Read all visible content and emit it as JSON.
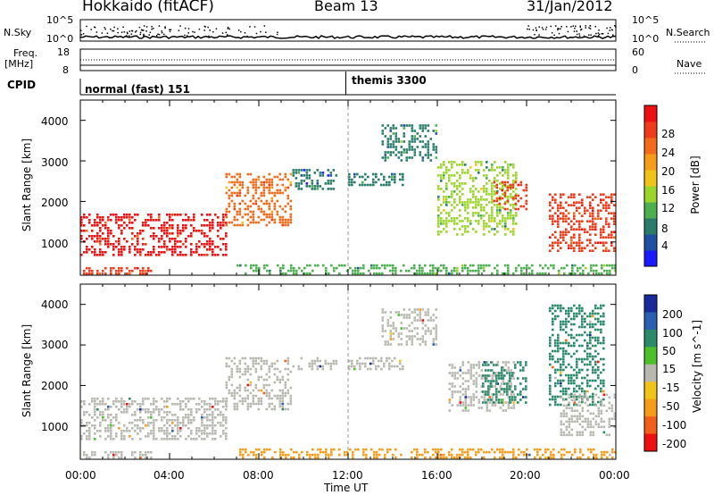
{
  "header": {
    "station": "Hokkaido (fitACF)",
    "beam": "Beam 13",
    "date": "31/Jan/2012"
  },
  "nsky": {
    "label": "N.Sky",
    "tick_top": "10^5",
    "tick_bottom": "10^0",
    "right_tick_top": "10^5",
    "right_tick_bottom": "10^0",
    "right_label": "N.Search"
  },
  "freq": {
    "label_1": "Freq.",
    "label_2": "[MHz]",
    "tick_top": "18",
    "tick_bottom": "8",
    "right_tick_top": "60",
    "right_tick_bottom": "0",
    "right_label": "Nave"
  },
  "cpid": {
    "label": "CPID",
    "mode_1": "normal (fast) 151",
    "mode_2": "themis 3300"
  },
  "power_panel": {
    "ylabel": "Slant Range [km]",
    "yticks": [
      "1000",
      "2000",
      "3000",
      "4000"
    ],
    "colorbar_label": "Power [dB]",
    "colorbar_ticks": [
      "4",
      "8",
      "12",
      "16",
      "20",
      "24",
      "28"
    ],
    "colorbar_colors": [
      "#1a1aff",
      "#1f4fa0",
      "#2a7c6a",
      "#4caf50",
      "#9bd42a",
      "#f0c419",
      "#f59c1a",
      "#f26b1a",
      "#f03b1a",
      "#ee1010"
    ]
  },
  "velocity_panel": {
    "ylabel": "Slant Range [km]",
    "yticks": [
      "1000",
      "2000",
      "3000",
      "4000"
    ],
    "colorbar_label": "Velocity [m s^-1]",
    "colorbar_ticks": [
      "200",
      "100",
      "50",
      "15",
      "-15",
      "-50",
      "-100",
      "-200"
    ],
    "colorbar_colors": [
      "#1a2a9a",
      "#2a60b0",
      "#2a8a6a",
      "#4cc02a",
      "#b8b8b0",
      "#f0c419",
      "#f59c1a",
      "#f0601a",
      "#ee1010"
    ]
  },
  "xaxis": {
    "label": "Time UT",
    "ticks": [
      "00:00",
      "04:00",
      "08:00",
      "12:00",
      "16:00",
      "20:00",
      "00:00"
    ]
  },
  "chart_data": [
    {
      "type": "heatmap",
      "title": "Hokkaido (fitACF)",
      "xlabel": "Time UT",
      "ylabel": "Slant Range [km]",
      "colorbar_label": "Power [dB]",
      "xlim": [
        0,
        24
      ],
      "ylim": [
        180,
        4500
      ],
      "clim": [
        0,
        30
      ],
      "regions": [
        {
          "t": [
            0,
            6.5
          ],
          "r": [
            700,
            1700
          ],
          "value": 28
        },
        {
          "t": [
            0,
            3.2
          ],
          "r": [
            200,
            380
          ],
          "value": 26
        },
        {
          "t": [
            6.5,
            9.5
          ],
          "r": [
            1400,
            2700
          ],
          "value": 22
        },
        {
          "t": [
            9.5,
            11.5
          ],
          "r": [
            2300,
            2800
          ],
          "value": 6
        },
        {
          "t": [
            12.0,
            14.5
          ],
          "r": [
            2400,
            2700
          ],
          "value": 6
        },
        {
          "t": [
            13.5,
            16.0
          ],
          "r": [
            3000,
            3900
          ],
          "value": 8
        },
        {
          "t": [
            16.0,
            19.5
          ],
          "r": [
            1200,
            3000
          ],
          "value": 12
        },
        {
          "t": [
            18.5,
            20.0
          ],
          "r": [
            1800,
            2500
          ],
          "value": 26
        },
        {
          "t": [
            21.0,
            24.0
          ],
          "r": [
            800,
            2200
          ],
          "value": 26
        },
        {
          "t": [
            7.0,
            24.0
          ],
          "r": [
            200,
            450
          ],
          "value": 10
        }
      ]
    },
    {
      "type": "heatmap",
      "title": "Beam 13",
      "xlabel": "Time UT",
      "ylabel": "Slant Range [km]",
      "colorbar_label": "Velocity [m s^-1]",
      "xlim": [
        0,
        24
      ],
      "ylim": [
        180,
        4500
      ],
      "clim": [
        -200,
        200
      ],
      "regions": [
        {
          "t": [
            0,
            6.5
          ],
          "r": [
            700,
            1700
          ],
          "value": 0
        },
        {
          "t": [
            6.5,
            9.5
          ],
          "r": [
            1400,
            2700
          ],
          "value": 0
        },
        {
          "t": [
            9.5,
            11.5
          ],
          "r": [
            2400,
            2700
          ],
          "value": 0
        },
        {
          "t": [
            12.0,
            14.5
          ],
          "r": [
            2400,
            2700
          ],
          "value": 0
        },
        {
          "t": [
            13.5,
            16.0
          ],
          "r": [
            3000,
            3900
          ],
          "value": 0
        },
        {
          "t": [
            16.5,
            19.5
          ],
          "r": [
            1400,
            2600
          ],
          "value": 0
        },
        {
          "t": [
            18.0,
            20.0
          ],
          "r": [
            1600,
            2600
          ],
          "value": 40
        },
        {
          "t": [
            21.0,
            23.5
          ],
          "r": [
            1500,
            4000
          ],
          "value": 40
        },
        {
          "t": [
            21.5,
            24.0
          ],
          "r": [
            800,
            1800
          ],
          "value": 0
        },
        {
          "t": [
            0,
            3.2
          ],
          "r": [
            200,
            380
          ],
          "value": 0
        },
        {
          "t": [
            7.0,
            24.0
          ],
          "r": [
            200,
            450
          ],
          "value": -50
        }
      ]
    }
  ]
}
